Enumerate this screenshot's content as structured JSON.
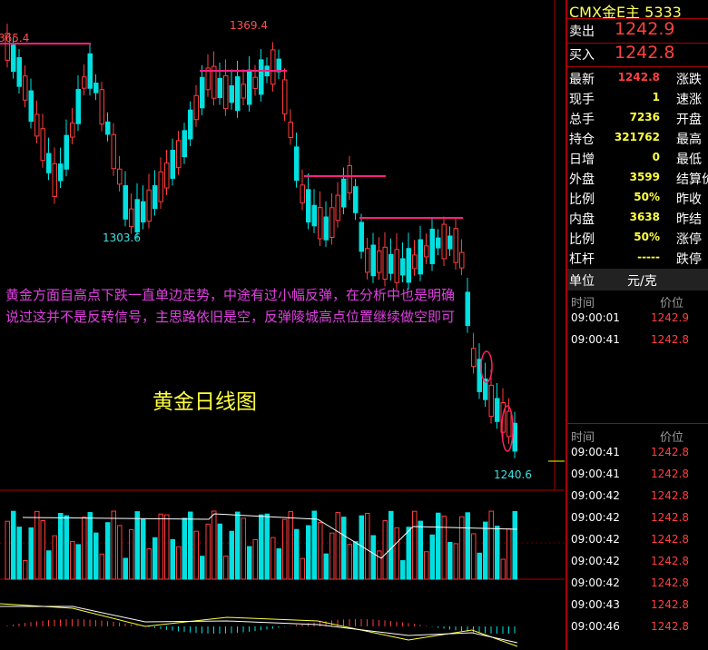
{
  "header": {
    "title": "CMX金E主 5333"
  },
  "quote": [
    {
      "label": "卖出",
      "value": "1242.9"
    },
    {
      "label": "买入",
      "value": "1242.8"
    }
  ],
  "stats": [
    [
      "最新",
      "1242.8",
      "涨跌"
    ],
    [
      "现手",
      "1",
      "速涨"
    ],
    [
      "总手",
      "7236",
      "开盘"
    ],
    [
      "持仓",
      "321762",
      "最高"
    ],
    [
      "日增",
      "0",
      "最低"
    ],
    [
      "外盘",
      "3599",
      "结算价"
    ],
    [
      "比例",
      "50%",
      "昨收"
    ],
    [
      "内盘",
      "3638",
      "昨结"
    ],
    [
      "比例",
      "50%",
      "涨停"
    ],
    [
      "杠杆",
      "-----",
      "跌停"
    ]
  ],
  "unit": {
    "label": "单位",
    "value": "元/克"
  },
  "ticks1": {
    "headers": [
      "时间",
      "价位"
    ],
    "rows": [
      [
        "09:00:01",
        "1242.9"
      ],
      [
        "09:00:41",
        "1242.8"
      ]
    ]
  },
  "ticks2": {
    "headers": [
      "时间",
      "价位"
    ],
    "rows": [
      [
        "09:00:41",
        "1242.8"
      ],
      [
        "09:00:41",
        "1242.8"
      ],
      [
        "09:00:42",
        "1242.8"
      ],
      [
        "09:00:42",
        "1242.8"
      ],
      [
        "09:00:42",
        "1242.8"
      ],
      [
        "09:00:42",
        "1242.8"
      ],
      [
        "09:00:42",
        "1242.8"
      ],
      [
        "09:00:43",
        "1242.8"
      ],
      [
        "09:00:46",
        "1242.8"
      ]
    ]
  },
  "chart": {
    "title": "黄金日线图",
    "annotation": [
      "黄金方面自高点下跌一直单边走势，中途有过小幅反弹，在分析中也是明确",
      "说过这并不是反转信号，主思路依旧是空，反弹陵城高点位置继续做空即可"
    ],
    "price_labels": [
      "1369.4",
      "365.4",
      "1303.6",
      "1240.6"
    ]
  }
}
